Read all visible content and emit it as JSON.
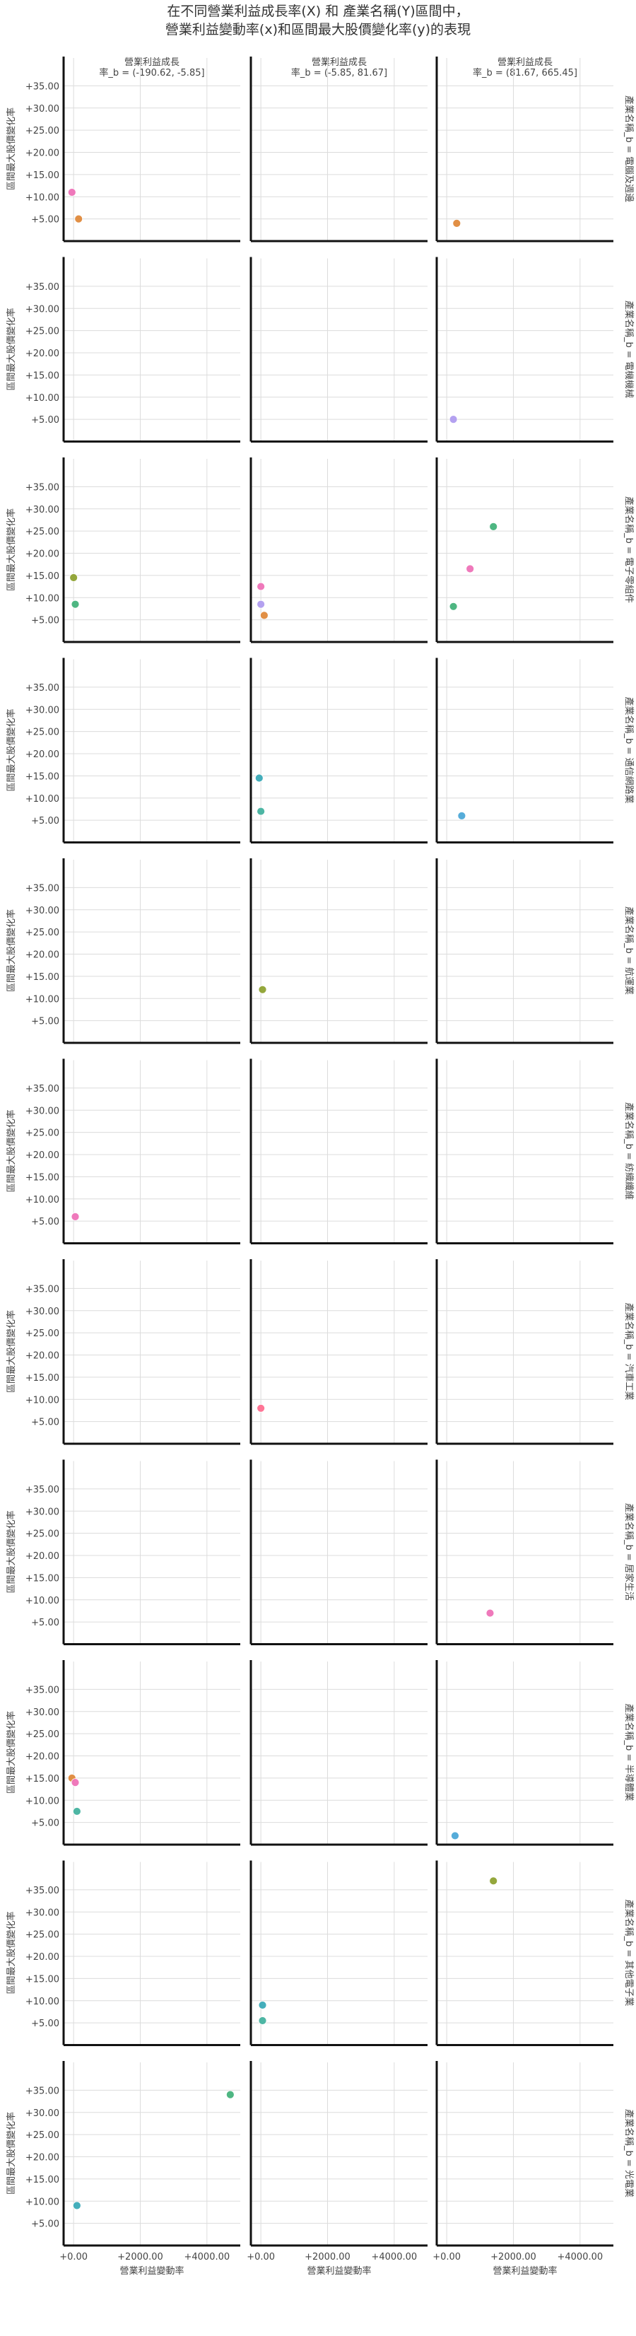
{
  "chart_data": {
    "type": "scatter",
    "title_lines": [
      "在不同營業利益成長率(X) 和 產業名稱(Y)區間中，",
      "營業利益變動率(x)和區間最大股價變化率(y)的表現"
    ],
    "col_header_prefix": "營業利益成長",
    "col_header_suffix": "率_b = ",
    "columns": [
      "(-190.62, -5.85]",
      "(-5.85, 81.67]",
      "(81.67, 665.45]"
    ],
    "row_label_prefix": "產業名稱_b = ",
    "rows": [
      "電腦及週邊",
      "電機機械",
      "電子零組件",
      "通信網路業",
      "航運業",
      "紡織纖維",
      "汽車工業",
      "居家生活",
      "半導體業",
      "其他電子業",
      "光電業"
    ],
    "xlabel": "營業利益變動率",
    "ylabel": "區間最大股價變化率",
    "xlim": [
      -300,
      5000
    ],
    "ylim": [
      0,
      40
    ],
    "x_ticks": [
      0,
      2000,
      4000
    ],
    "x_tick_labels": [
      "+0.00",
      "+2000.00",
      "+4000.00"
    ],
    "y_ticks": [
      5,
      10,
      15,
      20,
      25,
      30,
      35
    ],
    "y_tick_labels": [
      "+5.00",
      "+10.00",
      "+15.00",
      "+20.00",
      "+25.00",
      "+30.00",
      "+35.00"
    ],
    "grid": true,
    "colors": {
      "orange": "#e08a3c",
      "pink": "#ef72b8",
      "purple": "#b09cf0",
      "olive": "#8fa332",
      "green": "#45b37c",
      "teal": "#3aaab8",
      "blue": "#4da8d8",
      "rose": "#ff7fa8"
    },
    "points": [
      {
        "row": 0,
        "col": 0,
        "x": -50,
        "y": 11,
        "color": "#ef72b8"
      },
      {
        "row": 0,
        "col": 0,
        "x": 150,
        "y": 5,
        "color": "#e08a3c"
      },
      {
        "row": 0,
        "col": 2,
        "x": 300,
        "y": 4,
        "color": "#e08a3c"
      },
      {
        "row": 1,
        "col": 2,
        "x": 200,
        "y": 5,
        "color": "#b09cf0"
      },
      {
        "row": 2,
        "col": 0,
        "x": 0,
        "y": 14.5,
        "color": "#8fa332"
      },
      {
        "row": 2,
        "col": 0,
        "x": 50,
        "y": 8.5,
        "color": "#45b37c"
      },
      {
        "row": 2,
        "col": 1,
        "x": 0,
        "y": 12.5,
        "color": "#ef72b8"
      },
      {
        "row": 2,
        "col": 1,
        "x": 0,
        "y": 8.5,
        "color": "#b09cf0"
      },
      {
        "row": 2,
        "col": 1,
        "x": 100,
        "y": 6,
        "color": "#e08a3c"
      },
      {
        "row": 2,
        "col": 2,
        "x": 1400,
        "y": 26,
        "color": "#45b37c"
      },
      {
        "row": 2,
        "col": 2,
        "x": 700,
        "y": 16.5,
        "color": "#ef72b8"
      },
      {
        "row": 2,
        "col": 2,
        "x": 200,
        "y": 8,
        "color": "#45b37c"
      },
      {
        "row": 3,
        "col": 1,
        "x": -50,
        "y": 14.5,
        "color": "#3aaab8"
      },
      {
        "row": 3,
        "col": 1,
        "x": 0,
        "y": 7,
        "color": "#45b3a0"
      },
      {
        "row": 3,
        "col": 2,
        "x": 450,
        "y": 6,
        "color": "#4da8d8"
      },
      {
        "row": 4,
        "col": 1,
        "x": 50,
        "y": 12,
        "color": "#8fa332"
      },
      {
        "row": 5,
        "col": 0,
        "x": 50,
        "y": 6,
        "color": "#ef72b8"
      },
      {
        "row": 6,
        "col": 1,
        "x": 0,
        "y": 8,
        "color": "#ff6f91"
      },
      {
        "row": 7,
        "col": 2,
        "x": 1300,
        "y": 7,
        "color": "#ef72b8"
      },
      {
        "row": 8,
        "col": 0,
        "x": -50,
        "y": 15,
        "color": "#e08a3c"
      },
      {
        "row": 8,
        "col": 0,
        "x": 50,
        "y": 14,
        "color": "#ef72b8"
      },
      {
        "row": 8,
        "col": 0,
        "x": 100,
        "y": 7.5,
        "color": "#45b3a0"
      },
      {
        "row": 8,
        "col": 2,
        "x": 250,
        "y": 2,
        "color": "#4da8d8"
      },
      {
        "row": 9,
        "col": 1,
        "x": 50,
        "y": 9,
        "color": "#3aaab8"
      },
      {
        "row": 9,
        "col": 1,
        "x": 50,
        "y": 5.5,
        "color": "#45b3a0"
      },
      {
        "row": 9,
        "col": 2,
        "x": 1400,
        "y": 37,
        "color": "#8fa332"
      },
      {
        "row": 10,
        "col": 0,
        "x": 4700,
        "y": 34,
        "color": "#45b37c"
      },
      {
        "row": 10,
        "col": 0,
        "x": 100,
        "y": 9,
        "color": "#3aaab8"
      }
    ]
  }
}
